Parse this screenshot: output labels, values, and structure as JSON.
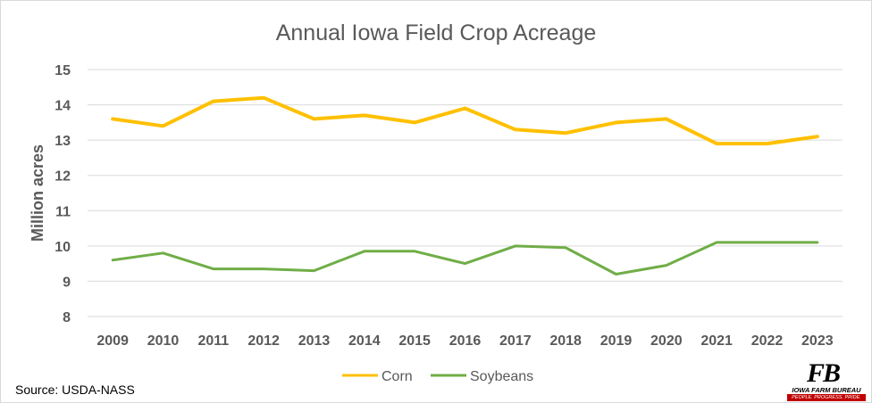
{
  "chart_data": {
    "type": "line",
    "title": "Annual Iowa Field Crop Acreage",
    "ylabel": "Million acres",
    "xlabel": "",
    "ylim": [
      8,
      15
    ],
    "yticks": [
      "8",
      "9",
      "10",
      "11",
      "12",
      "13",
      "14",
      "15"
    ],
    "categories": [
      "2009",
      "2010",
      "2011",
      "2012",
      "2013",
      "2014",
      "2015",
      "2016",
      "2017",
      "2018",
      "2019",
      "2020",
      "2021",
      "2022",
      "2023"
    ],
    "grid": true,
    "legend_position": "bottom",
    "series": [
      {
        "name": "Corn",
        "color": "#FFC000",
        "values": [
          13.6,
          13.4,
          14.1,
          14.2,
          13.6,
          13.7,
          13.5,
          13.9,
          13.3,
          13.2,
          13.5,
          13.6,
          12.9,
          12.9,
          13.1
        ]
      },
      {
        "name": "Soybeans",
        "color": "#70AD47",
        "values": [
          9.6,
          9.8,
          9.35,
          9.35,
          9.3,
          9.85,
          9.85,
          9.5,
          10.0,
          9.95,
          9.2,
          9.45,
          10.1,
          10.1,
          10.1
        ]
      }
    ]
  },
  "source": "Source: USDA-NASS",
  "logo": {
    "mark": "FB",
    "name": "IOWA FARM BUREAU",
    "tagline": "PEOPLE. PROGRESS. PRIDE."
  }
}
